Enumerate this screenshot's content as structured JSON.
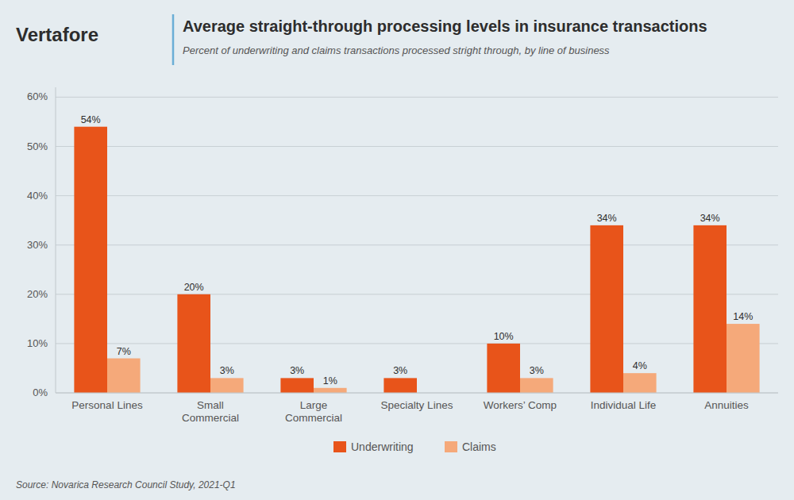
{
  "chart_data": {
    "type": "bar",
    "title": "Average straight-through processing levels in insurance transactions",
    "subtitle": "Percent of underwriting and claims transactions processed stright through, by line of business",
    "source": "Source: Novarica Research Council Study, 2021-Q1",
    "annotations": [
      "Vertafore"
    ],
    "categories": [
      "Personal Lines",
      "Small\nCommercial",
      "Large\nCommercial",
      "Specialty Lines",
      "Workers’ Comp",
      "Individual Life",
      "Annuities"
    ],
    "series": [
      {
        "name": "Underwriting",
        "color": "#E8541A",
        "values": [
          54,
          20,
          3,
          3,
          10,
          34,
          34
        ],
        "value_labels": [
          "54%",
          "20%",
          "3%",
          "3%",
          "10%",
          "34%",
          "34%"
        ]
      },
      {
        "name": "Claims",
        "color": "#F5A97A",
        "values": [
          7,
          3,
          1,
          0,
          3,
          4,
          14
        ],
        "value_labels": [
          "7%",
          "3%",
          "1%",
          null,
          "3%",
          "4%",
          "14%"
        ]
      }
    ],
    "ylim": [
      0,
      62
    ],
    "yticks": [
      {
        "value": 0,
        "label": "0%"
      },
      {
        "value": 10,
        "label": "10%"
      },
      {
        "value": 20,
        "label": "20%"
      },
      {
        "value": 30,
        "label": "30%"
      },
      {
        "value": 40,
        "label": "40%"
      },
      {
        "value": 50,
        "label": "50%"
      },
      {
        "value": 60,
        "label": "60%"
      }
    ],
    "grid": true,
    "legend": "bottom",
    "data_labels": true
  }
}
